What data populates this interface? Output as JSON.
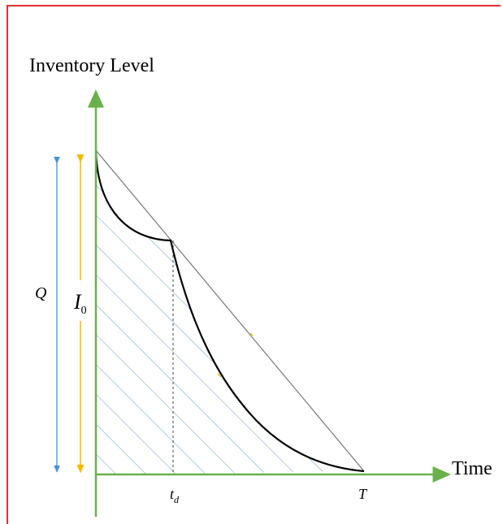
{
  "diagram": {
    "y_axis_label": "Inventory Level",
    "x_axis_label": "Time",
    "labels": {
      "q": "Q",
      "i0_main": "I",
      "i0_sub": "0",
      "td_main": "t",
      "td_sub": "d",
      "t_end": "T"
    },
    "colors": {
      "frame": "#e03030",
      "axes": "#6ab04c",
      "q_arrow": "#4a90d9",
      "i0_arrow": "#f5b800",
      "hatch": "#7fa6dc",
      "curve": "#000000",
      "straight_line": "#777777",
      "dashed_line": "#444444"
    },
    "hatch_style": "diagonal"
  }
}
